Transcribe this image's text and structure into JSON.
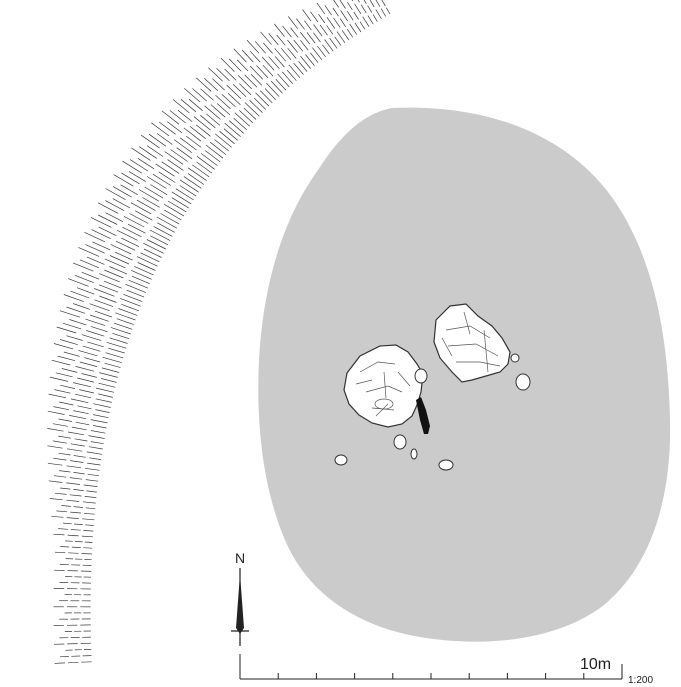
{
  "north_label": "N",
  "scale_bar_label": "10m",
  "scale_ratio": "1:200",
  "colors": {
    "mound_fill": "#cbcbcb",
    "stone_fill": "#ffffff",
    "stone_outline": "#333333",
    "hachure": "#3a3a3a",
    "standing_stone": "#111111",
    "ink": "#222222"
  },
  "icons": {
    "north_arrow": "north-arrow-icon"
  },
  "features": {
    "large_stones": [
      "stone-west",
      "stone-east"
    ],
    "small_stone_count": 7,
    "standing_stone_count": 1
  }
}
